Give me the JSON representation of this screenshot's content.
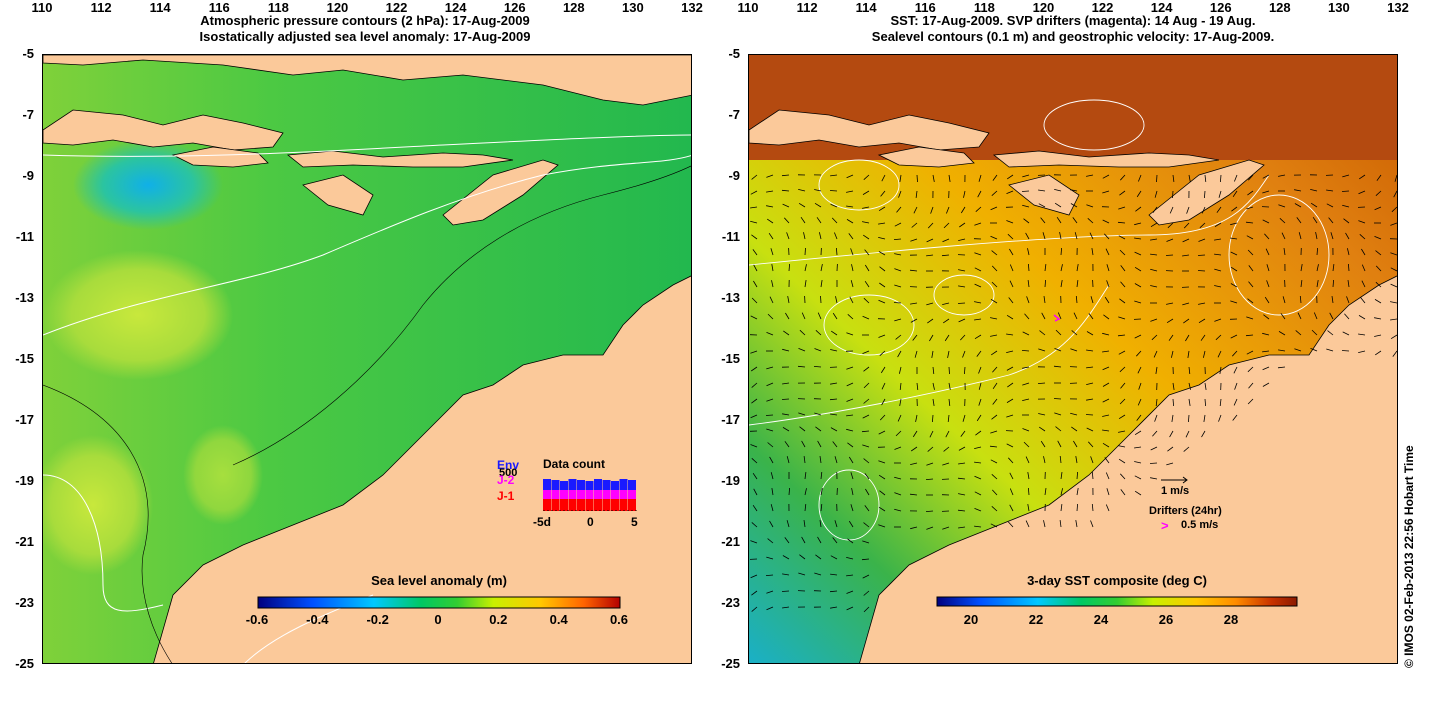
{
  "left_panel": {
    "title_line1": "Atmospheric pressure contours (2 hPa): 17-Aug-2009",
    "title_line2": "Isostatically adjusted sea level anomaly: 17-Aug-2009",
    "colorbar_title": "Sea level anomaly (m)",
    "colorbar_ticks": [
      "-0.6",
      "-0.4",
      "-0.2",
      "0",
      "0.2",
      "0.4",
      "0.6"
    ],
    "data_count": {
      "title": "Data count",
      "series": [
        "Env",
        "J-2",
        "J-1"
      ],
      "series_colors": [
        "#1a1aff",
        "#ff00ff",
        "#ff0000"
      ],
      "value_label": "500",
      "x_ticks": [
        "-5d",
        "0",
        "5"
      ]
    }
  },
  "right_panel": {
    "title_line1": "SST: 17-Aug-2009. SVP drifters (magenta): 14 Aug - 19 Aug.",
    "title_line2": "Sealevel contours (0.1 m) and geostrophic velocity: 17-Aug-2009.",
    "colorbar_title": "3-day SST composite (deg C)",
    "colorbar_ticks": [
      "20",
      "22",
      "24",
      "26",
      "28"
    ],
    "velocity_scale": "1 m/s",
    "drifters_label": "Drifters (24hr)",
    "drifter_scale": "0.5 m/s"
  },
  "axes": {
    "y_ticks": [
      "-5",
      "-7",
      "-9",
      "-11",
      "-13",
      "-15",
      "-17",
      "-19",
      "-21",
      "-23",
      "-25"
    ],
    "x_ticks": [
      "110",
      "112",
      "114",
      "116",
      "118",
      "120",
      "122",
      "124",
      "126",
      "128",
      "130",
      "132"
    ]
  },
  "credit": "© IMOS 02-Feb-2013 22:56 Hobart Time",
  "colors": {
    "land": "#fbc99a",
    "sla_scale": [
      "#00007f",
      "#0050ff",
      "#00c8ff",
      "#00c864",
      "#32cd32",
      "#c8f000",
      "#ffc800",
      "#ff6400",
      "#b40000"
    ],
    "sst_scale": [
      "#00007f",
      "#0050ff",
      "#00c8ff",
      "#00c864",
      "#32cd32",
      "#c8f000",
      "#ffc800",
      "#ff8c00",
      "#c83200",
      "#8b1a00"
    ]
  }
}
